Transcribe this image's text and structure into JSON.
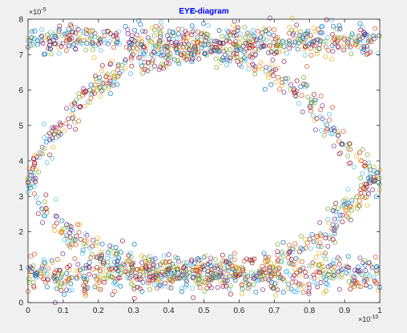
{
  "chart_data": {
    "type": "scatter",
    "title": "EYE-diagram",
    "xlabel": "",
    "ylabel": "",
    "xlim": [
      0,
      1
    ],
    "ylim": [
      0,
      8
    ],
    "x_exponent_label": "×10",
    "x_exponent_power": "-10",
    "y_exponent_label": "×10",
    "y_exponent_power": "-5",
    "x_ticks": [
      "0",
      "0.1",
      "0.2",
      "0.3",
      "0.4",
      "0.5",
      "0.6",
      "0.7",
      "0.8",
      "0.9",
      "1"
    ],
    "y_ticks": [
      "0",
      "1",
      "2",
      "3",
      "4",
      "5",
      "6",
      "7",
      "8"
    ],
    "x_tick_values": [
      0,
      0.1,
      0.2,
      0.3,
      0.4,
      0.5,
      0.6,
      0.7,
      0.8,
      0.9,
      1
    ],
    "y_tick_values": [
      0,
      1,
      2,
      3,
      4,
      5,
      6,
      7,
      8
    ],
    "marker": "circle-open",
    "levels": {
      "high": 7.4,
      "low": 0.75,
      "crossing": 3.5,
      "rising_peak": 7.1,
      "falling_trough": 0.9
    },
    "series": [
      {
        "values": [
          [
            0.0,
            7.35
          ],
          [
            0.05,
            7.42
          ],
          [
            0.1,
            7.38
          ],
          [
            0.15,
            7.45
          ],
          [
            0.2,
            7.4
          ],
          [
            0.25,
            7.36
          ],
          [
            0.3,
            7.44
          ],
          [
            0.35,
            7.39
          ],
          [
            0.4,
            7.41
          ],
          [
            0.45,
            7.37
          ],
          [
            0.5,
            7.43
          ],
          [
            0.55,
            7.4
          ],
          [
            0.6,
            7.38
          ],
          [
            0.65,
            7.42
          ],
          [
            0.7,
            7.36
          ],
          [
            0.75,
            7.44
          ],
          [
            0.8,
            7.39
          ],
          [
            0.85,
            7.41
          ],
          [
            0.9,
            7.37
          ],
          [
            0.95,
            7.43
          ],
          [
            1.0,
            7.4
          ]
        ]
      },
      {
        "values": [
          [
            0.0,
            0.8
          ],
          [
            0.05,
            0.72
          ],
          [
            0.1,
            0.78
          ],
          [
            0.15,
            0.7
          ],
          [
            0.2,
            0.76
          ],
          [
            0.25,
            0.82
          ],
          [
            0.3,
            0.74
          ],
          [
            0.35,
            0.79
          ],
          [
            0.4,
            0.71
          ],
          [
            0.45,
            0.77
          ],
          [
            0.5,
            0.73
          ],
          [
            0.55,
            0.8
          ],
          [
            0.6,
            0.75
          ],
          [
            0.65,
            0.7
          ],
          [
            0.7,
            0.78
          ],
          [
            0.75,
            0.72
          ],
          [
            0.8,
            0.76
          ],
          [
            0.85,
            0.81
          ],
          [
            0.9,
            0.74
          ],
          [
            0.95,
            0.79
          ],
          [
            1.0,
            0.75
          ]
        ]
      },
      {
        "values": [
          [
            0.0,
            3.5
          ],
          [
            0.05,
            4.4
          ],
          [
            0.1,
            5.1
          ],
          [
            0.15,
            5.65
          ],
          [
            0.2,
            6.1
          ],
          [
            0.25,
            6.45
          ],
          [
            0.3,
            6.75
          ],
          [
            0.35,
            6.95
          ],
          [
            0.4,
            7.05
          ],
          [
            0.45,
            7.1
          ],
          [
            0.5,
            7.1
          ],
          [
            0.55,
            7.05
          ],
          [
            0.6,
            6.95
          ],
          [
            0.65,
            6.75
          ],
          [
            0.7,
            6.45
          ],
          [
            0.75,
            6.1
          ],
          [
            0.8,
            5.65
          ],
          [
            0.85,
            5.1
          ],
          [
            0.9,
            4.4
          ],
          [
            0.95,
            3.9
          ],
          [
            1.0,
            3.5
          ]
        ]
      },
      {
        "values": [
          [
            0.0,
            3.5
          ],
          [
            0.05,
            2.6
          ],
          [
            0.1,
            2.0
          ],
          [
            0.15,
            1.65
          ],
          [
            0.2,
            1.4
          ],
          [
            0.25,
            1.2
          ],
          [
            0.3,
            1.05
          ],
          [
            0.35,
            0.98
          ],
          [
            0.4,
            0.93
          ],
          [
            0.45,
            0.9
          ],
          [
            0.5,
            0.9
          ],
          [
            0.55,
            0.93
          ],
          [
            0.6,
            0.98
          ],
          [
            0.65,
            1.05
          ],
          [
            0.7,
            1.2
          ],
          [
            0.75,
            1.4
          ],
          [
            0.8,
            1.65
          ],
          [
            0.85,
            2.0
          ],
          [
            0.9,
            2.6
          ],
          [
            0.95,
            3.1
          ],
          [
            1.0,
            3.5
          ]
        ]
      }
    ],
    "colors": [
      "#0072bd",
      "#d95319",
      "#edb120",
      "#7e2f8e",
      "#77ac30",
      "#4dbeee",
      "#a2142f"
    ],
    "grid": false,
    "legend": "none"
  }
}
